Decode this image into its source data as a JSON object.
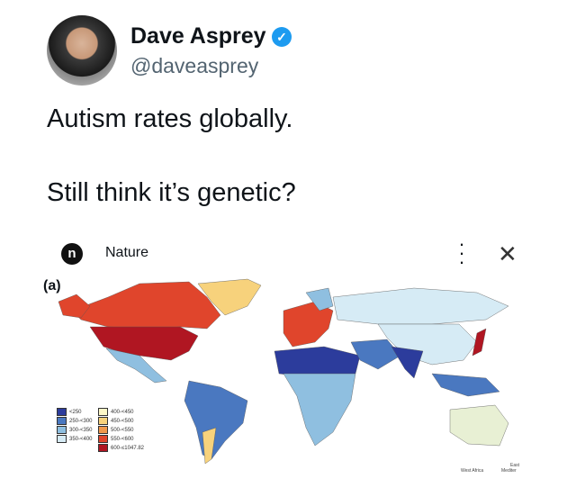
{
  "author": {
    "name": "Dave Asprey",
    "handle": "@daveasprey",
    "verified": true
  },
  "tweet": {
    "line1": "Autism rates globally.",
    "line2": "Still think it’s genetic?"
  },
  "card": {
    "source": "Nature",
    "logo_letter": "n",
    "more_icon": "more-vertical-icon",
    "close_icon": "close-icon",
    "panel_label": "(a)"
  },
  "legend": [
    {
      "label": "<250",
      "color": "#2c3c9c"
    },
    {
      "label": "250-<300",
      "color": "#4a78c0"
    },
    {
      "label": "300-<350",
      "color": "#8fbfe0"
    },
    {
      "label": "350-<400",
      "color": "#d6ebf5"
    },
    {
      "label": "400-<450",
      "color": "#fdf8c8"
    },
    {
      "label": "450-<500",
      "color": "#f7d27c"
    },
    {
      "label": "500-<550",
      "color": "#f0984c"
    },
    {
      "label": "550-<600",
      "color": "#e0452c"
    },
    {
      "label": "600-≤1047.82",
      "color": "#b01622"
    }
  ],
  "map_footer": {
    "west_africa": "West Africa",
    "east_med_1": "East",
    "east_med_2": "Mediter"
  }
}
